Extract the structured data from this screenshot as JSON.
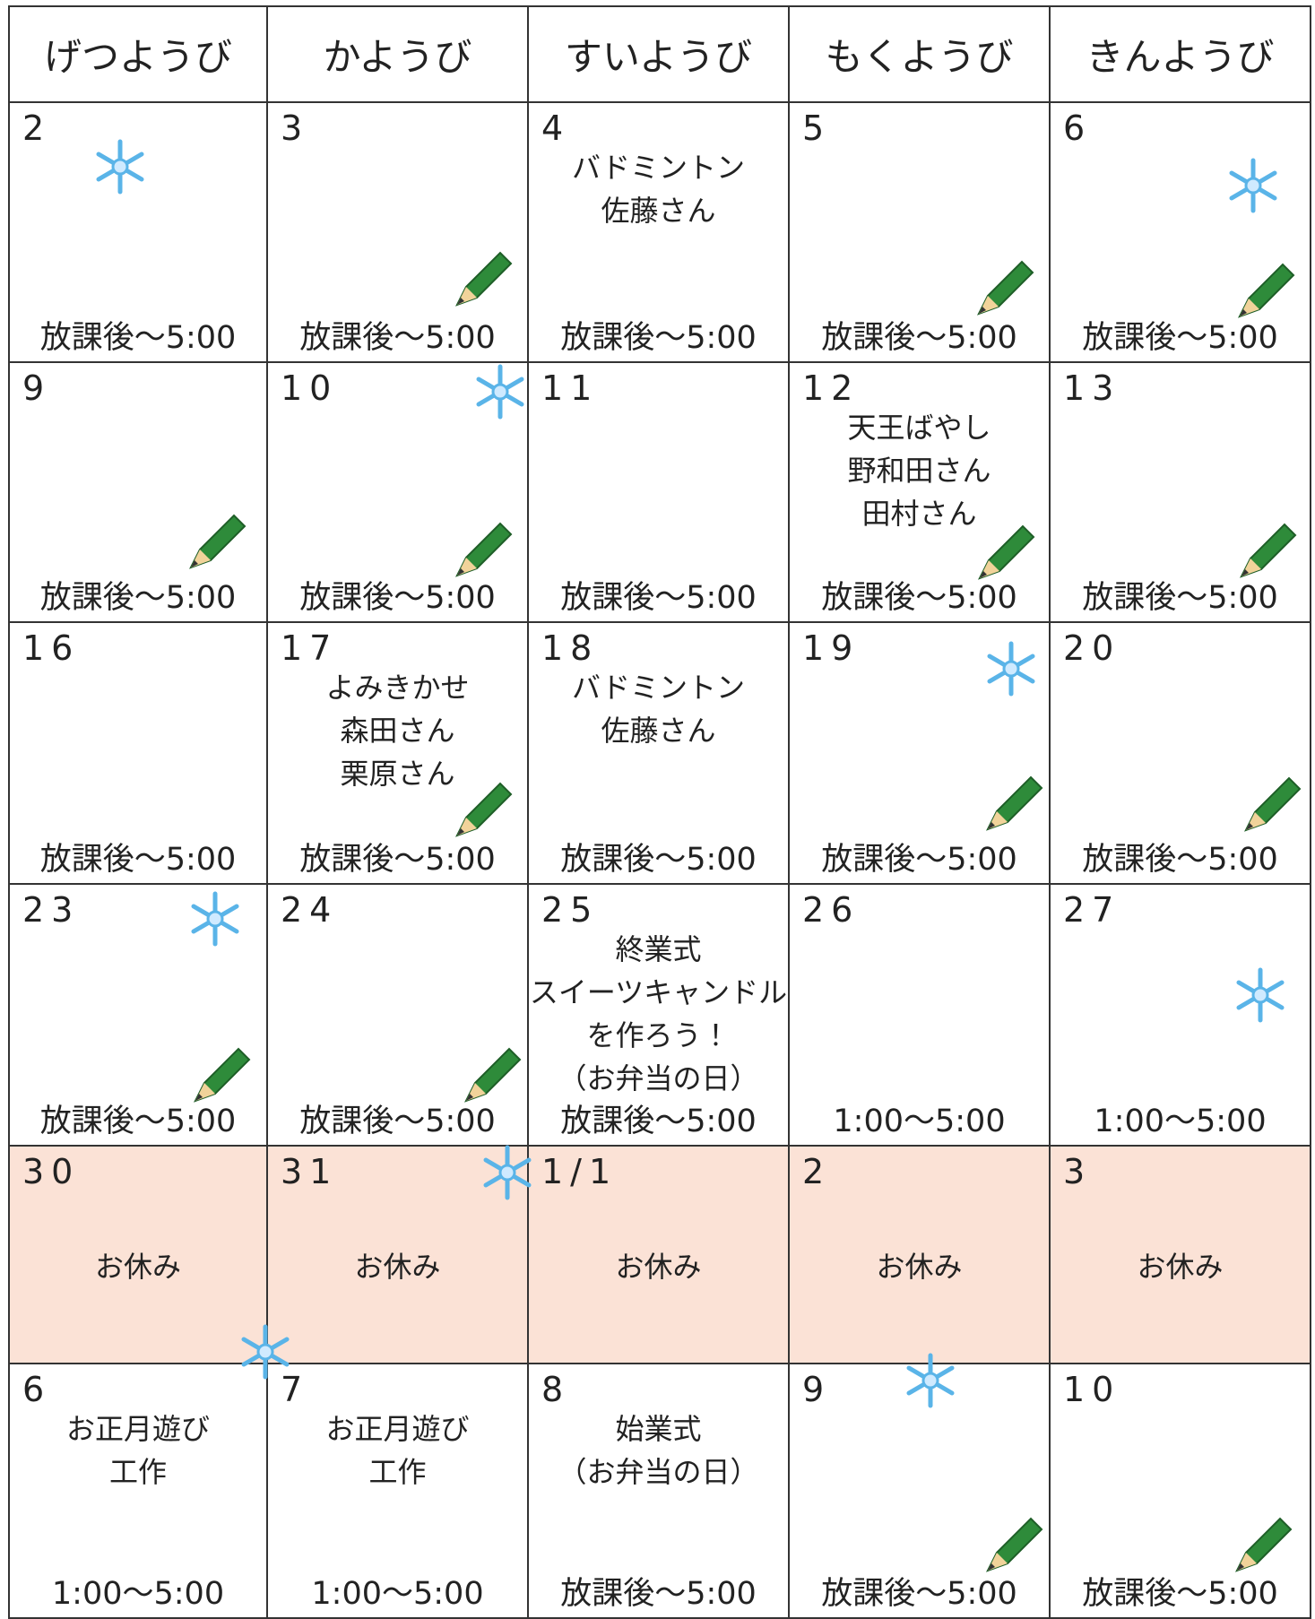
{
  "header": {
    "days": [
      "げつようび",
      "かようび",
      "すいようび",
      "もくようび",
      "きんようび"
    ]
  },
  "weeks": [
    {
      "cells": [
        {
          "date": "2",
          "lines": [],
          "time": "放課後～5:00"
        },
        {
          "date": "3",
          "lines": [],
          "time": "放課後～5:00"
        },
        {
          "date": "4",
          "lines": [
            "バドミントン",
            "佐藤さん"
          ],
          "time": "放課後～5:00"
        },
        {
          "date": "5",
          "lines": [],
          "time": "放課後～5:00"
        },
        {
          "date": "6",
          "lines": [],
          "time": "放課後～5:00"
        }
      ]
    },
    {
      "cells": [
        {
          "date": "9",
          "lines": [],
          "time": "放課後～5:00"
        },
        {
          "date": "10",
          "lines": [],
          "time": "放課後～5:00"
        },
        {
          "date": "11",
          "lines": [],
          "time": "放課後～5:00"
        },
        {
          "date": "12",
          "lines": [
            "天王ばやし",
            "野和田さん",
            "田村さん"
          ],
          "time": "放課後～5:00"
        },
        {
          "date": "13",
          "lines": [],
          "time": "放課後～5:00"
        }
      ]
    },
    {
      "cells": [
        {
          "date": "16",
          "lines": [],
          "time": "放課後～5:00"
        },
        {
          "date": "17",
          "lines": [
            "よみきかせ",
            "森田さん",
            "栗原さん"
          ],
          "time": "放課後～5:00"
        },
        {
          "date": "18",
          "lines": [
            "バドミントン",
            "佐藤さん"
          ],
          "time": "放課後～5:00"
        },
        {
          "date": "19",
          "lines": [],
          "time": "放課後～5:00"
        },
        {
          "date": "20",
          "lines": [],
          "time": "放課後～5:00"
        }
      ]
    },
    {
      "cells": [
        {
          "date": "23",
          "lines": [],
          "time": "放課後～5:00"
        },
        {
          "date": "24",
          "lines": [],
          "time": "放課後～5:00"
        },
        {
          "date": "25",
          "lines": [
            "終業式",
            "スイーツキャンドル",
            "を作ろう！",
            "（お弁当の日）"
          ],
          "time": "放課後～5:00"
        },
        {
          "date": "26",
          "lines": [],
          "time": "1:00～5:00"
        },
        {
          "date": "27",
          "lines": [],
          "time": "1:00～5:00"
        }
      ]
    },
    {
      "holiday": true,
      "cells": [
        {
          "date": "30",
          "lines": [
            "お休み"
          ]
        },
        {
          "date": "31",
          "lines": [
            "お休み"
          ]
        },
        {
          "date": "1/1",
          "lines": [
            "お休み"
          ]
        },
        {
          "date": "2",
          "lines": [
            "お休み"
          ]
        },
        {
          "date": "3",
          "lines": [
            "お休み"
          ]
        }
      ]
    },
    {
      "cells": [
        {
          "date": "6",
          "lines": [
            "お正月遊び",
            "工作"
          ],
          "time": "1:00～5:00"
        },
        {
          "date": "7",
          "lines": [
            "お正月遊び",
            "工作"
          ],
          "time": "1:00～5:00"
        },
        {
          "date": "8",
          "lines": [
            "始業式",
            "（お弁当の日）"
          ],
          "time": "放課後～5:00"
        },
        {
          "date": "9",
          "lines": [],
          "time": "放課後～5:00"
        },
        {
          "date": "10",
          "lines": [],
          "time": "放課後～5:00"
        }
      ]
    }
  ]
}
